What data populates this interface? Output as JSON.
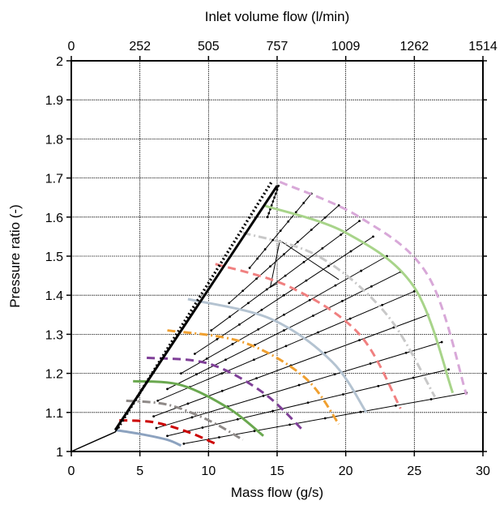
{
  "chart_data": {
    "type": "line",
    "title": "",
    "xlabel": "Mass flow (g/s)",
    "ylabel": "Pressure ratio (-)",
    "x2label": "Inlet volume flow (l/min)",
    "xlim": [
      0,
      30
    ],
    "ylim": [
      1,
      2
    ],
    "xticks": [
      0,
      5,
      10,
      15,
      20,
      25,
      30
    ],
    "yticks": [
      1,
      1.1,
      1.2,
      1.3,
      1.4,
      1.5,
      1.6,
      1.7,
      1.8,
      1.9,
      2
    ],
    "x2ticks": [
      "0",
      "252",
      "505",
      "757",
      "1009",
      "1262",
      "1514"
    ],
    "grid": true,
    "operating_lines": [
      {
        "style": "solid-black-thin",
        "x": [
          0,
          3.2,
          3.5
        ],
        "y": [
          1.0,
          1.05,
          1.065
        ]
      },
      {
        "style": "solid-black-thick",
        "x": [
          3.2,
          15.0
        ],
        "y": [
          1.055,
          1.68
        ]
      },
      {
        "style": "dotted-black",
        "x": [
          3.4,
          14.6
        ],
        "y": [
          1.06,
          1.69
        ]
      }
    ],
    "speed_lines": [
      {
        "color": "#8ca2bf",
        "dash": "solid",
        "x": [
          3.2,
          5,
          7,
          8
        ],
        "y": [
          1.055,
          1.045,
          1.03,
          1.015
        ]
      },
      {
        "color": "#cc0000",
        "dash": "dashed",
        "x": [
          3.5,
          6,
          8.5,
          10.5
        ],
        "y": [
          1.08,
          1.075,
          1.05,
          1.02
        ]
      },
      {
        "color": "#8f8a88",
        "dash": "dashdot",
        "x": [
          4,
          7,
          10,
          12.5
        ],
        "y": [
          1.13,
          1.12,
          1.08,
          1.03
        ]
      },
      {
        "color": "#6aa84f",
        "dash": "solid",
        "x": [
          4.5,
          8,
          11.5,
          14
        ],
        "y": [
          1.18,
          1.17,
          1.11,
          1.04
        ]
      },
      {
        "color": "#7f3f98",
        "dash": "dashed",
        "x": [
          5.5,
          10,
          14,
          17
        ],
        "y": [
          1.24,
          1.225,
          1.15,
          1.05
        ]
      },
      {
        "color": "#f0a030",
        "dash": "dashdot",
        "x": [
          7,
          12.5,
          17,
          19.5
        ],
        "y": [
          1.31,
          1.28,
          1.19,
          1.07
        ]
      },
      {
        "color": "#b4c3d1",
        "dash": "solid",
        "x": [
          8.5,
          14.5,
          19,
          21.5
        ],
        "y": [
          1.39,
          1.34,
          1.23,
          1.1
        ]
      },
      {
        "color": "#f08080",
        "dash": "dashed",
        "x": [
          10.5,
          16,
          21,
          24
        ],
        "y": [
          1.48,
          1.42,
          1.3,
          1.11
        ]
      },
      {
        "color": "#c8c8c8",
        "dash": "dashdot",
        "x": [
          12.5,
          18,
          23,
          26.5
        ],
        "y": [
          1.56,
          1.5,
          1.35,
          1.14
        ]
      },
      {
        "color": "#a8d48a",
        "dash": "solid",
        "x": [
          14,
          20,
          25,
          27.8
        ],
        "y": [
          1.63,
          1.56,
          1.42,
          1.15
        ]
      },
      {
        "color": "#d8a8d8",
        "dash": "dashed",
        "x": [
          15.2,
          21,
          26,
          28.8
        ],
        "y": [
          1.69,
          1.6,
          1.45,
          1.145
        ]
      }
    ],
    "efficiency_lines": [
      {
        "x": [
          8.2,
          28.8
        ],
        "y": [
          1.02,
          1.15
        ]
      },
      {
        "x": [
          7,
          27.5
        ],
        "y": [
          1.04,
          1.21
        ]
      },
      {
        "x": [
          6.2,
          27
        ],
        "y": [
          1.06,
          1.28
        ]
      },
      {
        "x": [
          6,
          26
        ],
        "y": [
          1.09,
          1.35
        ]
      },
      {
        "x": [
          6.3,
          25
        ],
        "y": [
          1.13,
          1.41
        ]
      },
      {
        "x": [
          7,
          24
        ],
        "y": [
          1.16,
          1.46
        ]
      },
      {
        "x": [
          8,
          23
        ],
        "y": [
          1.2,
          1.5
        ]
      },
      {
        "x": [
          9,
          22
        ],
        "y": [
          1.25,
          1.55
        ]
      },
      {
        "x": [
          10.2,
          21
        ],
        "y": [
          1.31,
          1.59
        ]
      },
      {
        "x": [
          11.5,
          19.5
        ],
        "y": [
          1.38,
          1.63
        ]
      },
      {
        "x": [
          13,
          17.5
        ],
        "y": [
          1.47,
          1.66
        ]
      },
      {
        "x": [
          14.3,
          15.1
        ],
        "y": [
          1.6,
          1.68
        ]
      }
    ],
    "surge_loop": {
      "x": [
        15,
        14.5,
        15.2,
        19.5
      ],
      "y": [
        1.43,
        1.42,
        1.54,
        1.44
      ]
    }
  }
}
